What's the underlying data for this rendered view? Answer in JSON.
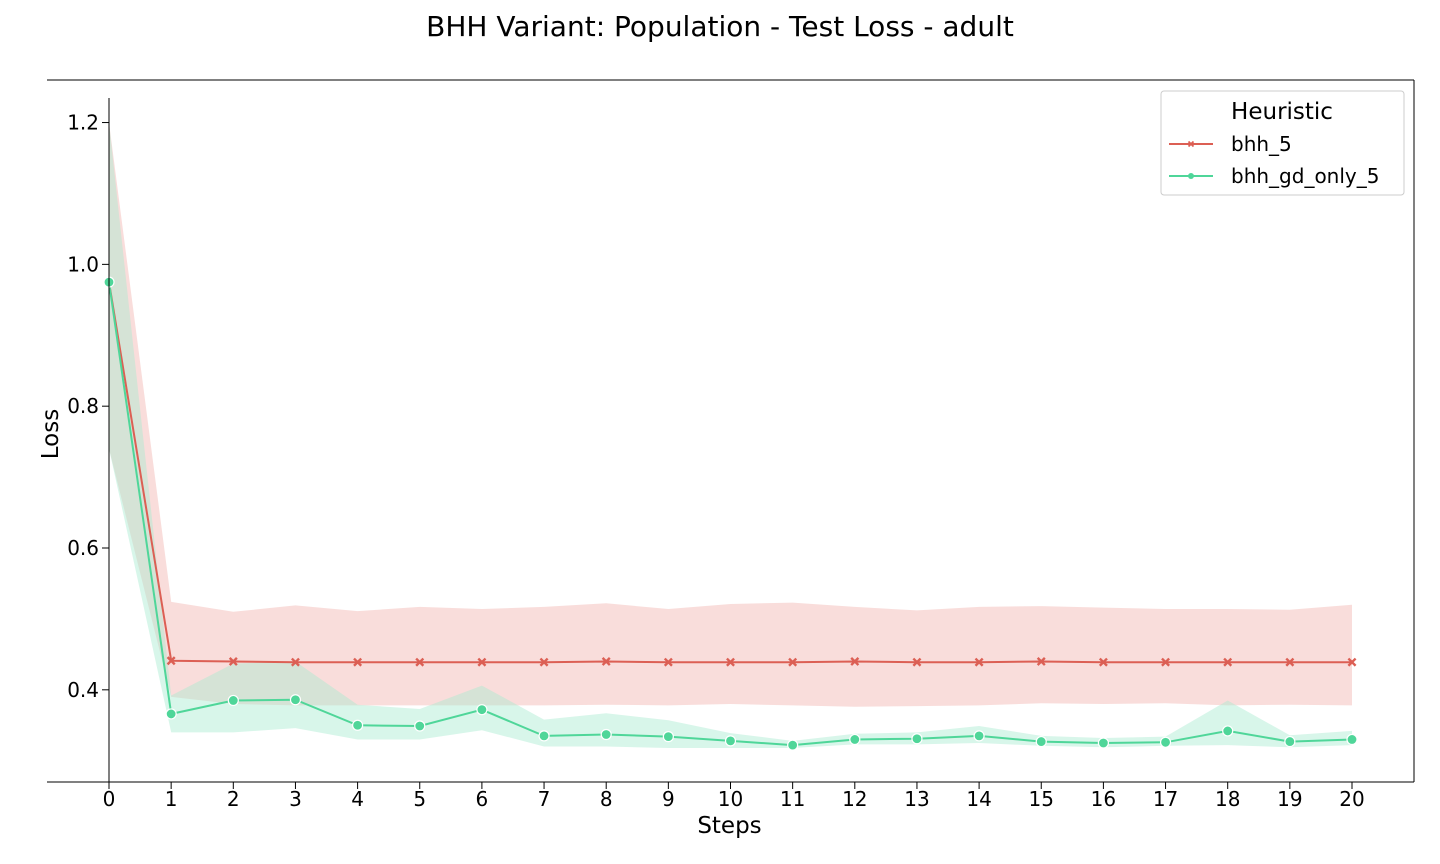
{
  "chart_data": {
    "type": "line",
    "title": "BHH Variant: Population - Test Loss - adult",
    "xlabel": "Steps",
    "ylabel": "Loss",
    "xlim": [
      -1,
      21
    ],
    "ylim": [
      0.27,
      1.26
    ],
    "x_ticks": [
      0,
      1,
      2,
      3,
      4,
      5,
      6,
      7,
      8,
      9,
      10,
      11,
      12,
      13,
      14,
      15,
      16,
      17,
      18,
      19,
      20
    ],
    "y_ticks": [
      0.4,
      0.6,
      0.8,
      1.0,
      1.2
    ],
    "y_tick_labels": [
      "0.4",
      "0.6",
      "0.8",
      "1.0",
      "1.2"
    ],
    "grid": false,
    "legend": {
      "title": "Heuristic",
      "position": "top-right"
    },
    "series": [
      {
        "name": "bhh_5",
        "color": "#dc5f54",
        "band_color": "#f2b3b0",
        "marker": "x",
        "x": [
          0,
          1,
          2,
          3,
          4,
          5,
          6,
          7,
          8,
          9,
          10,
          11,
          12,
          13,
          14,
          15,
          16,
          17,
          18,
          19,
          20
        ],
        "values": [
          0.975,
          0.441,
          0.44,
          0.439,
          0.439,
          0.439,
          0.439,
          0.439,
          0.44,
          0.439,
          0.439,
          0.439,
          0.44,
          0.439,
          0.439,
          0.44,
          0.439,
          0.439,
          0.439,
          0.439,
          0.439
        ],
        "lower": [
          0.74,
          0.39,
          0.38,
          0.378,
          0.378,
          0.378,
          0.378,
          0.378,
          0.379,
          0.378,
          0.38,
          0.378,
          0.376,
          0.377,
          0.378,
          0.381,
          0.38,
          0.381,
          0.378,
          0.379,
          0.378
        ],
        "upper": [
          1.2,
          0.524,
          0.51,
          0.519,
          0.511,
          0.517,
          0.514,
          0.517,
          0.522,
          0.514,
          0.521,
          0.523,
          0.517,
          0.512,
          0.517,
          0.518,
          0.516,
          0.514,
          0.514,
          0.513,
          0.52
        ]
      },
      {
        "name": "bhh_gd_only_5",
        "color": "#4fd699",
        "band_color": "#a8ecd0",
        "marker": "o",
        "x": [
          0,
          1,
          2,
          3,
          4,
          5,
          6,
          7,
          8,
          9,
          10,
          11,
          12,
          13,
          14,
          15,
          16,
          17,
          18,
          19,
          20
        ],
        "values": [
          0.975,
          0.366,
          0.385,
          0.386,
          0.35,
          0.349,
          0.372,
          0.335,
          0.337,
          0.334,
          0.328,
          0.322,
          0.33,
          0.331,
          0.335,
          0.327,
          0.325,
          0.326,
          0.342,
          0.327,
          0.33
        ],
        "lower": [
          0.74,
          0.34,
          0.34,
          0.346,
          0.33,
          0.33,
          0.343,
          0.32,
          0.32,
          0.318,
          0.318,
          0.318,
          0.323,
          0.323,
          0.325,
          0.321,
          0.319,
          0.321,
          0.322,
          0.319,
          0.322
        ],
        "upper": [
          1.2,
          0.392,
          0.437,
          0.44,
          0.379,
          0.373,
          0.406,
          0.358,
          0.367,
          0.357,
          0.339,
          0.328,
          0.338,
          0.34,
          0.349,
          0.335,
          0.332,
          0.334,
          0.385,
          0.336,
          0.342
        ]
      }
    ]
  }
}
